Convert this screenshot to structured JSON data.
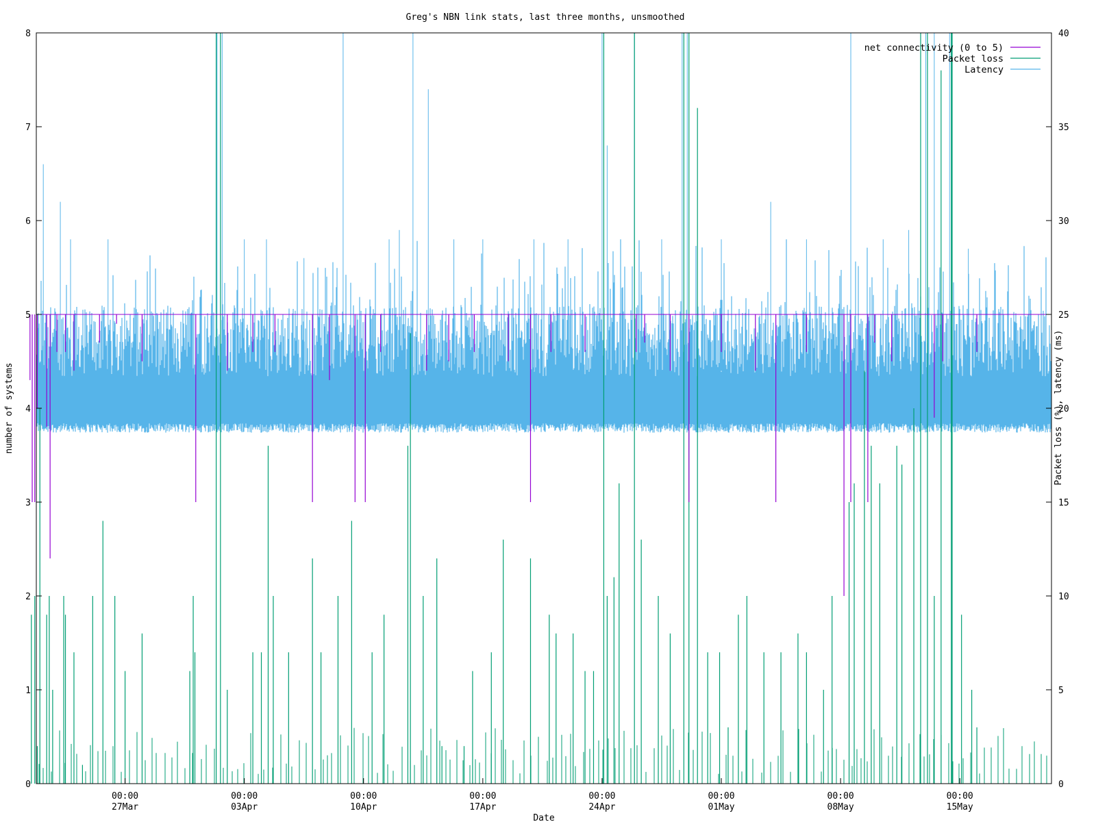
{
  "chart_data": {
    "type": "line",
    "title": "Greg's NBN link stats, last three months, unsmoothed",
    "xlabel": "Date",
    "ylabel_left": "number of systems",
    "ylabel_right": "Packet loss (%), latency (ms)",
    "y_left_range": [
      0,
      8
    ],
    "y_right_range": [
      0,
      40
    ],
    "y_left_ticks": [
      "0",
      "1",
      "2",
      "3",
      "4",
      "5",
      "6",
      "7",
      "8"
    ],
    "y_right_ticks": [
      "0",
      "5",
      "10",
      "15",
      "20",
      "25",
      "30",
      "35",
      "40"
    ],
    "x_range": [
      "2024-03-21T19:00",
      "2024-05-20T09:00"
    ],
    "x_ticks": [
      {
        "time": "00:00",
        "date": "27Mar"
      },
      {
        "time": "00:00",
        "date": "03Apr"
      },
      {
        "time": "00:00",
        "date": "10Apr"
      },
      {
        "time": "00:00",
        "date": "17Apr"
      },
      {
        "time": "00:00",
        "date": "24Apr"
      },
      {
        "time": "00:00",
        "date": "01May"
      },
      {
        "time": "00:00",
        "date": "08May"
      },
      {
        "time": "00:00",
        "date": "15May"
      }
    ],
    "grid": false,
    "legend_position": "top-right",
    "series": [
      {
        "name": "net connectivity (0 to 5)",
        "axis": "left",
        "color": "#9400d3",
        "baseline": 5,
        "dips": [
          {
            "x": 21.42,
            "y": 4.3
          },
          {
            "x": 21.55,
            "y": 3.0
          },
          {
            "x": 21.7,
            "y": 3.0
          },
          {
            "x": 21.85,
            "y": 4.0
          },
          {
            "x": 22.4,
            "y": 3.8
          },
          {
            "x": 22.6,
            "y": 2.4
          },
          {
            "x": 23.0,
            "y": 4.6
          },
          {
            "x": 23.5,
            "y": 4.6
          },
          {
            "x": 24.0,
            "y": 4.4
          },
          {
            "x": 25.5,
            "y": 4.7
          },
          {
            "x": 26.5,
            "y": 4.9
          },
          {
            "x": 28.0,
            "y": 4.5
          },
          {
            "x": 31.15,
            "y": 3.0
          },
          {
            "x": 33.0,
            "y": 4.4
          },
          {
            "x": 34.5,
            "y": 4.6
          },
          {
            "x": 35.8,
            "y": 4.6
          },
          {
            "x": 38.0,
            "y": 3.0
          },
          {
            "x": 39.0,
            "y": 4.3
          },
          {
            "x": 40.5,
            "y": 3.0
          },
          {
            "x": 41.1,
            "y": 3.0
          },
          {
            "x": 42.0,
            "y": 4.6
          },
          {
            "x": 44.7,
            "y": 4.4
          },
          {
            "x": 46.0,
            "y": 4.5
          },
          {
            "x": 47.5,
            "y": 4.6
          },
          {
            "x": 49.5,
            "y": 4.5
          },
          {
            "x": 50.8,
            "y": 3.0
          },
          {
            "x": 52.0,
            "y": 4.6
          },
          {
            "x": 54.0,
            "y": 4.6
          },
          {
            "x": 57.0,
            "y": 4.6
          },
          {
            "x": 57.5,
            "y": 4.7
          },
          {
            "x": 59.0,
            "y": 4.4
          },
          {
            "x": 60.1,
            "y": 3.0
          },
          {
            "x": 62.0,
            "y": 4.6
          },
          {
            "x": 64.0,
            "y": 4.4
          },
          {
            "x": 65.2,
            "y": 3.0
          },
          {
            "x": 67.0,
            "y": 4.6
          },
          {
            "x": 69.2,
            "y": 2.0
          },
          {
            "x": 69.6,
            "y": 3.0
          },
          {
            "x": 70.6,
            "y": 3.0
          },
          {
            "x": 71.0,
            "y": 4.7
          },
          {
            "x": 72.0,
            "y": 4.5
          },
          {
            "x": 74.5,
            "y": 3.9
          },
          {
            "x": 75.0,
            "y": 4.5
          },
          {
            "x": 77.0,
            "y": 4.6
          }
        ]
      },
      {
        "name": "Packet loss",
        "axis": "right",
        "color": "#009e73",
        "spikes": [
          {
            "x": 21.5,
            "y": 9
          },
          {
            "x": 21.7,
            "y": 10
          },
          {
            "x": 21.85,
            "y": 2
          },
          {
            "x": 22.0,
            "y": 20
          },
          {
            "x": 22.4,
            "y": 9
          },
          {
            "x": 22.55,
            "y": 10
          },
          {
            "x": 22.75,
            "y": 5
          },
          {
            "x": 23.4,
            "y": 10
          },
          {
            "x": 23.5,
            "y": 9
          },
          {
            "x": 24.0,
            "y": 7
          },
          {
            "x": 24.5,
            "y": 1
          },
          {
            "x": 25.1,
            "y": 10
          },
          {
            "x": 25.7,
            "y": 14
          },
          {
            "x": 26.4,
            "y": 10
          },
          {
            "x": 27.0,
            "y": 6
          },
          {
            "x": 28.0,
            "y": 8
          },
          {
            "x": 30.8,
            "y": 6
          },
          {
            "x": 31.0,
            "y": 10
          },
          {
            "x": 31.1,
            "y": 7
          },
          {
            "x": 32.35,
            "y": 40
          },
          {
            "x": 32.6,
            "y": 40
          },
          {
            "x": 33.0,
            "y": 5
          },
          {
            "x": 34.5,
            "y": 7
          },
          {
            "x": 35.0,
            "y": 7
          },
          {
            "x": 35.4,
            "y": 18
          },
          {
            "x": 35.7,
            "y": 10
          },
          {
            "x": 36.6,
            "y": 7
          },
          {
            "x": 38.0,
            "y": 12
          },
          {
            "x": 38.5,
            "y": 7
          },
          {
            "x": 39.5,
            "y": 10
          },
          {
            "x": 40.3,
            "y": 14
          },
          {
            "x": 41.5,
            "y": 7
          },
          {
            "x": 42.2,
            "y": 9
          },
          {
            "x": 43.6,
            "y": 18
          },
          {
            "x": 43.75,
            "y": 24
          },
          {
            "x": 44.5,
            "y": 10
          },
          {
            "x": 45.3,
            "y": 12
          },
          {
            "x": 45.6,
            "y": 2
          },
          {
            "x": 46.9,
            "y": 2
          },
          {
            "x": 47.4,
            "y": 6
          },
          {
            "x": 48.5,
            "y": 7
          },
          {
            "x": 49.2,
            "y": 13
          },
          {
            "x": 50.8,
            "y": 12
          },
          {
            "x": 51.9,
            "y": 9
          },
          {
            "x": 52.3,
            "y": 8
          },
          {
            "x": 53.3,
            "y": 8
          },
          {
            "x": 54.0,
            "y": 6
          },
          {
            "x": 54.5,
            "y": 6
          },
          {
            "x": 55.1,
            "y": 40
          },
          {
            "x": 55.3,
            "y": 10
          },
          {
            "x": 55.7,
            "y": 11
          },
          {
            "x": 56.0,
            "y": 16
          },
          {
            "x": 56.9,
            "y": 40
          },
          {
            "x": 57.3,
            "y": 13
          },
          {
            "x": 58.3,
            "y": 10
          },
          {
            "x": 59.0,
            "y": 8
          },
          {
            "x": 59.8,
            "y": 40
          },
          {
            "x": 60.1,
            "y": 40
          },
          {
            "x": 60.6,
            "y": 36
          },
          {
            "x": 61.2,
            "y": 7
          },
          {
            "x": 61.9,
            "y": 7
          },
          {
            "x": 62.4,
            "y": 3
          },
          {
            "x": 63.0,
            "y": 9
          },
          {
            "x": 63.5,
            "y": 10
          },
          {
            "x": 64.5,
            "y": 7
          },
          {
            "x": 65.5,
            "y": 7
          },
          {
            "x": 66.5,
            "y": 8
          },
          {
            "x": 67.0,
            "y": 7
          },
          {
            "x": 68.0,
            "y": 5
          },
          {
            "x": 68.5,
            "y": 10
          },
          {
            "x": 69.5,
            "y": 15
          },
          {
            "x": 69.8,
            "y": 16
          },
          {
            "x": 70.4,
            "y": 22
          },
          {
            "x": 70.8,
            "y": 18
          },
          {
            "x": 71.3,
            "y": 16
          },
          {
            "x": 72.3,
            "y": 18
          },
          {
            "x": 72.6,
            "y": 17
          },
          {
            "x": 73.3,
            "y": 20
          },
          {
            "x": 73.7,
            "y": 40
          },
          {
            "x": 74.1,
            "y": 40
          },
          {
            "x": 74.5,
            "y": 10
          },
          {
            "x": 74.9,
            "y": 38
          },
          {
            "x": 75.5,
            "y": 40
          },
          {
            "x": 75.55,
            "y": 40
          },
          {
            "x": 76.1,
            "y": 9
          },
          {
            "x": 76.7,
            "y": 5
          },
          {
            "x": 77.0,
            "y": 3
          }
        ]
      },
      {
        "name": "Latency",
        "axis": "right",
        "color": "#56b4e9",
        "typical_range_ms": [
          18.7,
          25.5
        ],
        "spikes": [
          {
            "x": 22.2,
            "y": 33
          },
          {
            "x": 23.2,
            "y": 31
          },
          {
            "x": 23.8,
            "y": 29
          },
          {
            "x": 26.0,
            "y": 29
          },
          {
            "x": 32.4,
            "y": 40
          },
          {
            "x": 32.7,
            "y": 40
          },
          {
            "x": 34.0,
            "y": 29
          },
          {
            "x": 35.3,
            "y": 29
          },
          {
            "x": 37.5,
            "y": 28
          },
          {
            "x": 39.8,
            "y": 40
          },
          {
            "x": 42.5,
            "y": 29
          },
          {
            "x": 43.1,
            "y": 29.5
          },
          {
            "x": 43.9,
            "y": 40
          },
          {
            "x": 44.8,
            "y": 37
          },
          {
            "x": 46.3,
            "y": 29
          },
          {
            "x": 48.0,
            "y": 29
          },
          {
            "x": 51.0,
            "y": 29
          },
          {
            "x": 53.0,
            "y": 29
          },
          {
            "x": 55.0,
            "y": 40
          },
          {
            "x": 55.3,
            "y": 34
          },
          {
            "x": 56.9,
            "y": 40
          },
          {
            "x": 58.5,
            "y": 29
          },
          {
            "x": 59.7,
            "y": 40
          },
          {
            "x": 60.0,
            "y": 40
          },
          {
            "x": 62.0,
            "y": 29
          },
          {
            "x": 64.9,
            "y": 31
          },
          {
            "x": 67.0,
            "y": 29
          },
          {
            "x": 69.6,
            "y": 40
          },
          {
            "x": 71.5,
            "y": 29
          },
          {
            "x": 73.0,
            "y": 29.5
          },
          {
            "x": 74.0,
            "y": 40
          },
          {
            "x": 74.5,
            "y": 40
          },
          {
            "x": 75.4,
            "y": 40
          },
          {
            "x": 75.5,
            "y": 40
          },
          {
            "x": 76.5,
            "y": 28.5
          }
        ]
      }
    ]
  }
}
